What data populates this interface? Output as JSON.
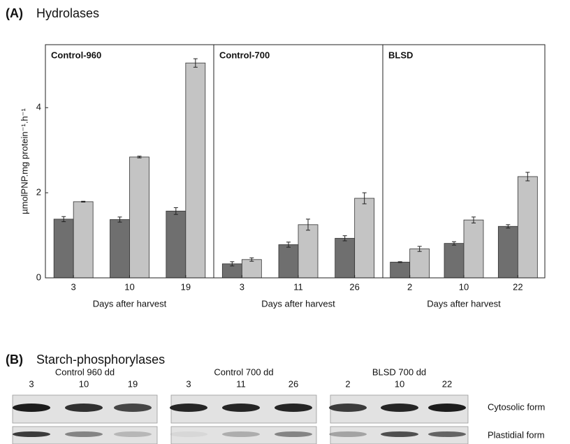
{
  "panel_a": {
    "label": "(A)",
    "title": "Hydrolases"
  },
  "chart_data": [
    {
      "type": "bar",
      "title": "Control-960",
      "categories": [
        "3",
        "10",
        "19"
      ],
      "series": [
        {
          "color": "#6f6f6f",
          "values": [
            1.38,
            1.37,
            1.57
          ],
          "errors": [
            0.06,
            0.06,
            0.08
          ]
        },
        {
          "color": "#c4c4c4",
          "values": [
            1.79,
            2.84,
            5.05
          ],
          "errors": [
            0.01,
            0.02,
            0.1
          ]
        }
      ],
      "ylim": [
        0,
        5.48
      ],
      "yticks": [
        0,
        2,
        4
      ],
      "ylabel": "µmolPNP.mg protein⁻¹.h⁻¹",
      "xlabel": "Days after harvest"
    },
    {
      "type": "bar",
      "title": "Control-700",
      "categories": [
        "3",
        "11",
        "26"
      ],
      "series": [
        {
          "color": "#6f6f6f",
          "values": [
            0.33,
            0.78,
            0.93
          ],
          "errors": [
            0.05,
            0.06,
            0.06
          ]
        },
        {
          "color": "#c4c4c4",
          "values": [
            0.43,
            1.25,
            1.87
          ],
          "errors": [
            0.04,
            0.13,
            0.13
          ]
        }
      ],
      "ylim": [
        0,
        5.48
      ],
      "xlabel": "Days after harvest"
    },
    {
      "type": "bar",
      "title": "BLSD",
      "categories": [
        "2",
        "10",
        "22"
      ],
      "series": [
        {
          "color": "#6f6f6f",
          "values": [
            0.37,
            0.81,
            1.21
          ],
          "errors": [
            0.01,
            0.04,
            0.04
          ]
        },
        {
          "color": "#c4c4c4",
          "values": [
            0.68,
            1.36,
            2.38
          ],
          "errors": [
            0.06,
            0.07,
            0.1
          ]
        }
      ],
      "ylim": [
        0,
        5.48
      ],
      "xlabel": "Days after harvest"
    }
  ],
  "panel_b": {
    "label": "(B)",
    "title": "Starch-phosphorylases",
    "groups": [
      {
        "title": "Control 960 dd",
        "lanes": [
          "3",
          "10",
          "19"
        ]
      },
      {
        "title": "Control 700 dd",
        "lanes": [
          "3",
          "11",
          "26"
        ]
      },
      {
        "title": "BLSD 700 dd",
        "lanes": [
          "2",
          "10",
          "22"
        ]
      }
    ],
    "rows": [
      "Cytosolic form",
      "Plastidial form"
    ]
  }
}
